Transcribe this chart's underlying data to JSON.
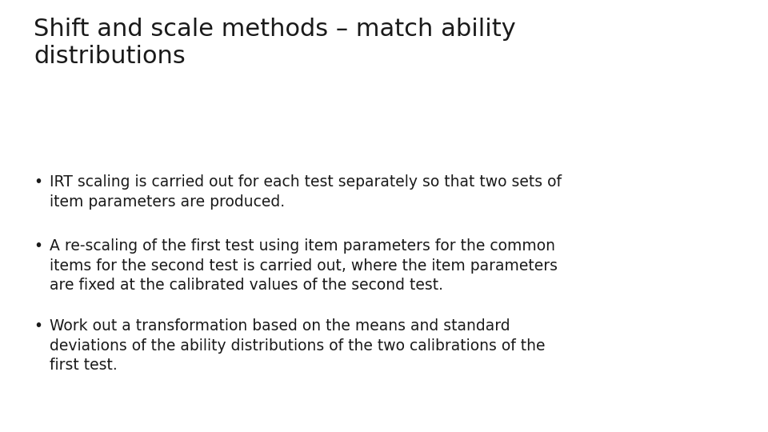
{
  "title": "Shift and scale methods – match ability\ndistributions",
  "bullets": [
    "IRT scaling is carried out for each test separately so that two sets of\nitem parameters are produced.",
    "A re-scaling of the first test using item parameters for the common\nitems for the second test is carried out, where the item parameters\nare fixed at the calibrated values of the second test.",
    "Work out a transformation based on the means and standard\ndeviations of the ability distributions of the two calibrations of the\nfirst test."
  ],
  "background_color": "#ffffff",
  "text_color": "#1a1a1a",
  "title_fontsize": 22,
  "bullet_fontsize": 13.5,
  "title_font": "DejaVu Sans",
  "bullet_font": "DejaVu Sans",
  "fig_width": 9.6,
  "fig_height": 5.4,
  "dpi": 100
}
